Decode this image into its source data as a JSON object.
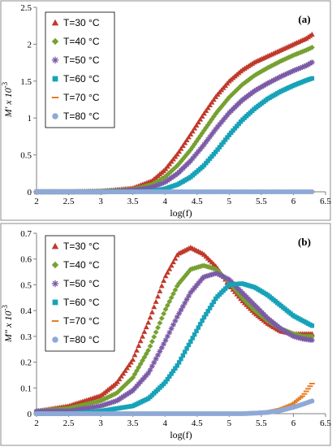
{
  "chart_data": [
    {
      "type": "scatter",
      "panel_label": "(a)",
      "xlabel": "log(f)",
      "ylabel": "M' x 10",
      "ylabel_exp": "-3",
      "xlim": [
        2,
        6.5
      ],
      "ylim": [
        0,
        2.5
      ],
      "xticks": [
        "2",
        "2.5",
        "3",
        "3.5",
        "4",
        "4.5",
        "5",
        "5.5",
        "6",
        "6.5"
      ],
      "yticks": [
        "0",
        "0.5",
        "1",
        "1.5",
        "2",
        "2.5"
      ],
      "grid": false,
      "legend": "top-left",
      "x": [
        2.0,
        2.5,
        3.0,
        3.5,
        3.8,
        4.0,
        4.2,
        4.4,
        4.6,
        4.8,
        5.0,
        5.2,
        5.4,
        5.6,
        5.8,
        6.0,
        6.2,
        6.3
      ],
      "series": [
        {
          "name": "T=30 °C",
          "marker": "triangle",
          "color": "#c0392b",
          "values": [
            0.0,
            0.0,
            0.01,
            0.05,
            0.15,
            0.3,
            0.52,
            0.78,
            1.05,
            1.3,
            1.5,
            1.65,
            1.76,
            1.84,
            1.92,
            2.0,
            2.08,
            2.14
          ]
        },
        {
          "name": "T=40 °C",
          "marker": "diamond",
          "color": "#76a131",
          "values": [
            0.0,
            0.0,
            0.01,
            0.03,
            0.1,
            0.2,
            0.36,
            0.57,
            0.82,
            1.07,
            1.28,
            1.45,
            1.58,
            1.68,
            1.77,
            1.85,
            1.92,
            1.96
          ]
        },
        {
          "name": "T=50 °C",
          "marker": "star",
          "color": "#7b5aa6",
          "values": [
            0.0,
            0.0,
            0.0,
            0.02,
            0.06,
            0.13,
            0.25,
            0.42,
            0.63,
            0.86,
            1.07,
            1.24,
            1.37,
            1.47,
            1.56,
            1.64,
            1.71,
            1.76
          ]
        },
        {
          "name": "T=60 °C",
          "marker": "square",
          "color": "#17a2b8",
          "values": [
            0.0,
            0.0,
            0.0,
            0.0,
            0.01,
            0.04,
            0.1,
            0.2,
            0.35,
            0.55,
            0.77,
            0.97,
            1.13,
            1.26,
            1.36,
            1.44,
            1.51,
            1.54
          ]
        },
        {
          "name": "T=70 °C",
          "marker": "dash",
          "color": "#e67e22",
          "values": [
            0.0,
            0.0,
            0.0,
            0.0,
            0.0,
            0.0,
            0.0,
            0.0,
            0.0,
            0.0,
            0.0,
            0.0,
            0.0,
            0.0,
            0.0,
            0.0,
            0.0,
            0.0
          ]
        },
        {
          "name": "T=80 °C",
          "marker": "circle",
          "color": "#8fa9d6",
          "values": [
            0.0,
            0.0,
            0.0,
            0.0,
            0.0,
            0.0,
            0.0,
            0.0,
            0.0,
            0.0,
            0.0,
            0.0,
            0.0,
            0.0,
            0.0,
            0.0,
            0.0,
            0.0
          ]
        }
      ]
    },
    {
      "type": "scatter",
      "panel_label": "(b)",
      "xlabel": "log(f)",
      "ylabel": "M\" x 10",
      "ylabel_exp": "-3",
      "xlim": [
        2,
        6.5
      ],
      "ylim": [
        0,
        0.7
      ],
      "xticks": [
        "2",
        "2.5",
        "3",
        "3.5",
        "4",
        "4.5",
        "5",
        "5.5",
        "6",
        "6.5"
      ],
      "yticks": [
        "0",
        "0.1",
        "0.2",
        "0.3",
        "0.4",
        "0.5",
        "0.6",
        "0.7"
      ],
      "grid": false,
      "legend": "top-left",
      "x": [
        2.0,
        2.5,
        3.0,
        3.25,
        3.5,
        3.75,
        4.0,
        4.2,
        4.4,
        4.6,
        4.8,
        5.0,
        5.2,
        5.4,
        5.6,
        5.8,
        6.0,
        6.15,
        6.3
      ],
      "series": [
        {
          "name": "T=30 °C",
          "marker": "triangle",
          "color": "#c0392b",
          "values": [
            0.01,
            0.03,
            0.07,
            0.12,
            0.21,
            0.36,
            0.53,
            0.62,
            0.645,
            0.62,
            0.57,
            0.5,
            0.44,
            0.39,
            0.35,
            0.32,
            0.31,
            0.31,
            0.31
          ]
        },
        {
          "name": "T=40 °C",
          "marker": "diamond",
          "color": "#76a131",
          "values": [
            0.01,
            0.02,
            0.05,
            0.08,
            0.14,
            0.25,
            0.4,
            0.5,
            0.56,
            0.575,
            0.56,
            0.51,
            0.45,
            0.4,
            0.36,
            0.33,
            0.31,
            0.3,
            0.3
          ]
        },
        {
          "name": "T=50 °C",
          "marker": "star",
          "color": "#7b5aa6",
          "values": [
            0.01,
            0.01,
            0.03,
            0.05,
            0.09,
            0.16,
            0.28,
            0.38,
            0.47,
            0.53,
            0.545,
            0.52,
            0.47,
            0.42,
            0.37,
            0.33,
            0.3,
            0.29,
            0.285
          ]
        },
        {
          "name": "T=60 °C",
          "marker": "square",
          "color": "#17a2b8",
          "values": [
            0.0,
            0.0,
            0.01,
            0.02,
            0.03,
            0.06,
            0.12,
            0.19,
            0.28,
            0.37,
            0.45,
            0.5,
            0.505,
            0.49,
            0.46,
            0.42,
            0.38,
            0.36,
            0.34
          ]
        },
        {
          "name": "T=70 °C",
          "marker": "dash",
          "color": "#e67e22",
          "values": [
            0.0,
            0.0,
            0.0,
            0.0,
            0.0,
            0.0,
            0.0,
            0.0,
            0.0,
            0.0,
            0.0,
            0.0,
            0.0,
            0.005,
            0.01,
            0.02,
            0.04,
            0.07,
            0.12
          ]
        },
        {
          "name": "T=80 °C",
          "marker": "circle",
          "color": "#8fa9d6",
          "values": [
            0.0,
            0.0,
            0.0,
            0.0,
            0.0,
            0.0,
            0.0,
            0.0,
            0.0,
            0.0,
            0.0,
            0.0,
            0.0,
            0.002,
            0.005,
            0.012,
            0.025,
            0.037,
            0.05
          ]
        }
      ]
    }
  ]
}
